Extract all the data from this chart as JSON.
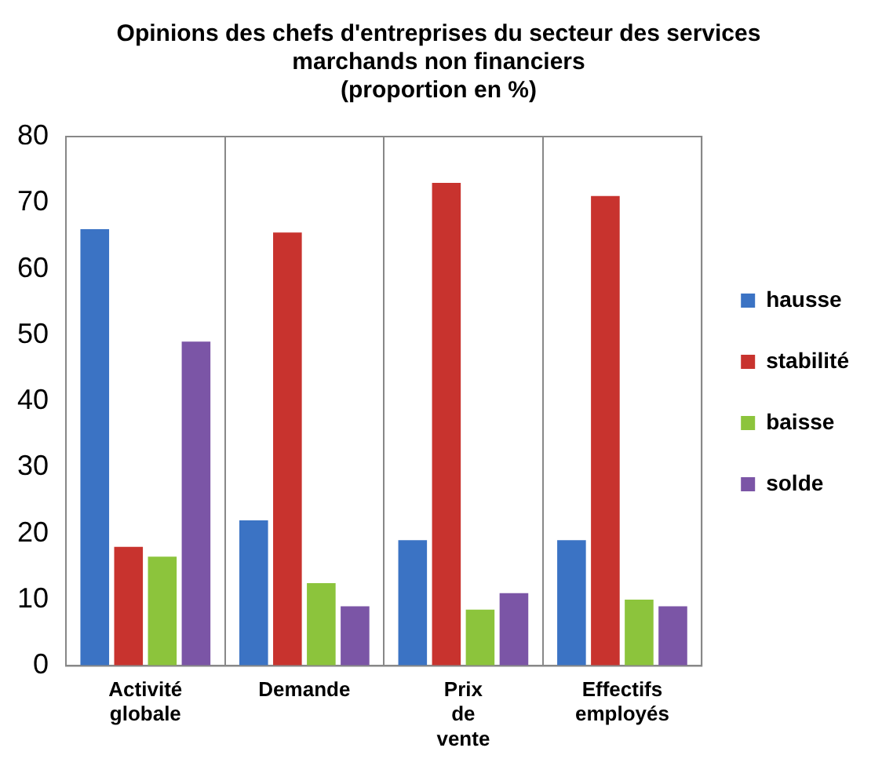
{
  "chart_data": {
    "type": "bar",
    "title": [
      "Opinions des chefs d'entreprises du secteur des services",
      "marchands non financiers",
      "(proportion en %)"
    ],
    "categories": [
      "Activité globale",
      "Demande",
      "Prix de vente",
      "Effectifs employés"
    ],
    "series": [
      {
        "name": "hausse",
        "color": "#3b73c4",
        "values": [
          66,
          22,
          19,
          19
        ]
      },
      {
        "name": "stabilité",
        "color": "#c8332e",
        "values": [
          18,
          65.5,
          73,
          71
        ]
      },
      {
        "name": "baisse",
        "color": "#8cc43c",
        "values": [
          16.5,
          12.5,
          8.5,
          10
        ]
      },
      {
        "name": "solde",
        "color": "#7b55a6",
        "values": [
          49,
          9,
          11,
          9
        ]
      }
    ],
    "ylim": [
      0,
      80
    ],
    "yticks": [
      0,
      10,
      20,
      30,
      40,
      50,
      60,
      70,
      80
    ],
    "grid": "x",
    "legend": "right"
  }
}
